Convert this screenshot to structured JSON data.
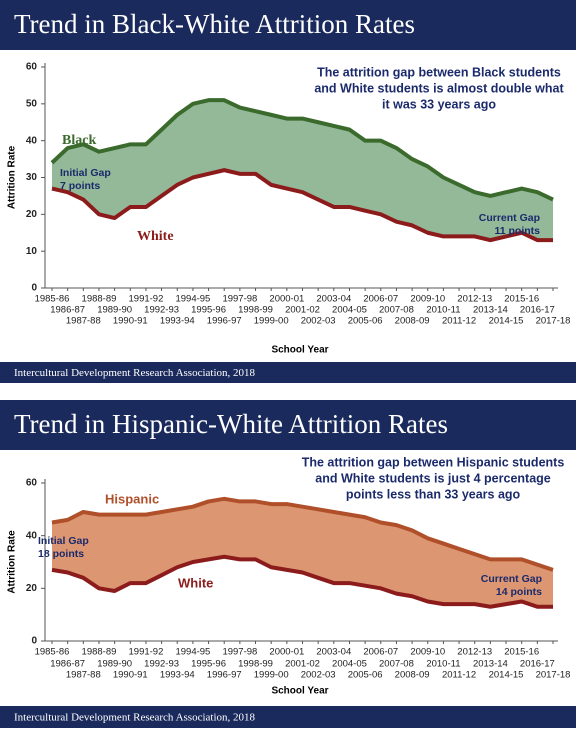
{
  "chart_data": [
    {
      "type": "area",
      "title": "Trend in Black-White Attrition Rates",
      "ylabel": "Attrition Rate",
      "xlabel": "School Year",
      "categories": [
        "1985-86",
        "1986-87",
        "1987-88",
        "1988-89",
        "1989-90",
        "1990-91",
        "1991-92",
        "1992-93",
        "1993-94",
        "1994-95",
        "1995-96",
        "1996-97",
        "1997-98",
        "1998-99",
        "1999-00",
        "2000-01",
        "2001-02",
        "2002-03",
        "2003-04",
        "2004-05",
        "2005-06",
        "2006-07",
        "2007-08",
        "2008-09",
        "2009-10",
        "2010-11",
        "2011-12",
        "2012-13",
        "2013-14",
        "2014-15",
        "2015-16",
        "2016-17",
        "2017-18"
      ],
      "series": [
        {
          "name": "Black",
          "color": "#3a6a2c",
          "values": [
            34,
            38,
            39,
            37,
            38,
            39,
            39,
            43,
            47,
            50,
            51,
            51,
            49,
            48,
            47,
            46,
            46,
            45,
            44,
            43,
            40,
            40,
            38,
            35,
            33,
            30,
            28,
            26,
            25,
            26,
            27,
            26,
            24
          ]
        },
        {
          "name": "White",
          "color": "#8c1c1c",
          "values": [
            27,
            26,
            24,
            20,
            19,
            22,
            22,
            25,
            28,
            30,
            31,
            32,
            31,
            31,
            28,
            27,
            26,
            24,
            22,
            22,
            21,
            20,
            18,
            17,
            15,
            14,
            14,
            14,
            13,
            14,
            15,
            13,
            13
          ]
        }
      ],
      "area_color": "#93b999",
      "ylim": [
        0,
        60
      ],
      "yticks": [
        0,
        10,
        20,
        30,
        40,
        50,
        60
      ],
      "annotation": [
        "The attrition gap between Black students",
        "and White students is almost double what",
        "it was 33 years ago"
      ],
      "initial_gap": [
        "Initial Gap",
        "7 points"
      ],
      "current_gap": [
        "Current Gap",
        "11 points"
      ],
      "source": "Intercultural Development Research Association, 2018"
    },
    {
      "type": "area",
      "title": "Trend in Hispanic-White Attrition Rates",
      "ylabel": "Attrition Rate",
      "xlabel": "School Year",
      "categories": [
        "1985-86",
        "1986-87",
        "1987-88",
        "1988-89",
        "1989-90",
        "1990-91",
        "1991-92",
        "1992-93",
        "1993-94",
        "1994-95",
        "1995-96",
        "1996-97",
        "1997-98",
        "1998-99",
        "1999-00",
        "2000-01",
        "2001-02",
        "2002-03",
        "2003-04",
        "2004-05",
        "2005-06",
        "2006-07",
        "2007-08",
        "2008-09",
        "2009-10",
        "2010-11",
        "2011-12",
        "2012-13",
        "2013-14",
        "2014-15",
        "2015-16",
        "2016-17",
        "2017-18"
      ],
      "series": [
        {
          "name": "Hispanic",
          "color": "#b0502a",
          "values": [
            45,
            46,
            49,
            48,
            48,
            48,
            48,
            49,
            50,
            51,
            53,
            54,
            53,
            53,
            52,
            52,
            51,
            50,
            49,
            48,
            47,
            45,
            44,
            42,
            39,
            37,
            35,
            33,
            31,
            31,
            31,
            29,
            27
          ]
        },
        {
          "name": "White",
          "color": "#8c1c1c",
          "values": [
            27,
            26,
            24,
            20,
            19,
            22,
            22,
            25,
            28,
            30,
            31,
            32,
            31,
            31,
            28,
            27,
            26,
            24,
            22,
            22,
            21,
            20,
            18,
            17,
            15,
            14,
            14,
            14,
            13,
            14,
            15,
            13,
            13
          ]
        }
      ],
      "area_color": "#dc9671",
      "ylim": [
        0,
        60
      ],
      "yticks": [
        0,
        20,
        40,
        60
      ],
      "annotation": [
        "The attrition gap between Hispanic students",
        "and White students is just 4 percentage",
        "points less than 33 years ago"
      ],
      "initial_gap": [
        "Initial Gap",
        "18 points"
      ],
      "current_gap": [
        "Current Gap",
        "14 points"
      ],
      "source": "Intercultural Development Research Association, 2018"
    }
  ]
}
